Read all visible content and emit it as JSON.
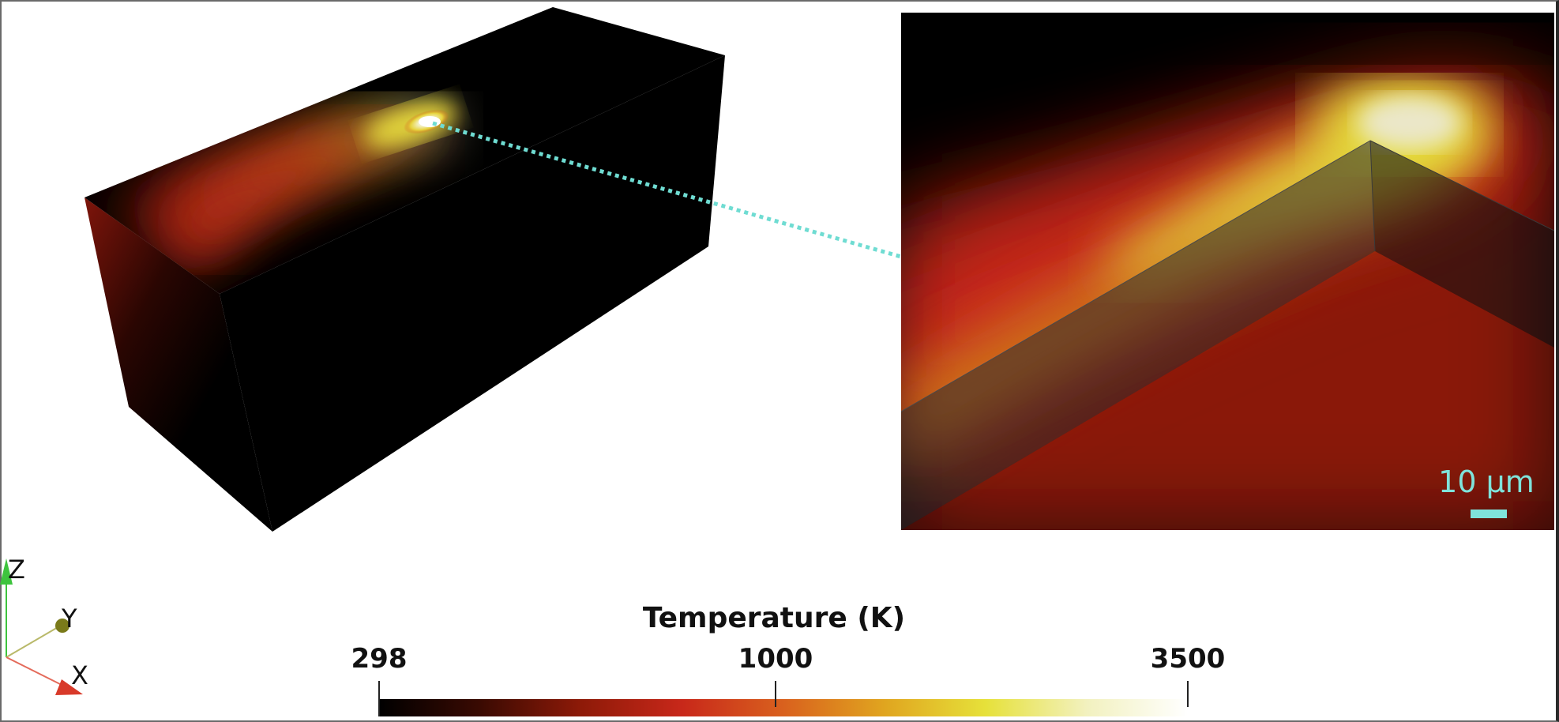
{
  "colorbar": {
    "title": "Temperature (K)",
    "ticks": [
      {
        "label": "298",
        "value": 298
      },
      {
        "label": "1000",
        "value": 1000
      },
      {
        "label": "3500",
        "value": 3500
      }
    ],
    "colors": [
      "#000000",
      "#3a0a02",
      "#8e1a08",
      "#c8281a",
      "#d9611e",
      "#e0a51f",
      "#e6e13a",
      "#f2f1bf",
      "#ffffff"
    ]
  },
  "inset": {
    "scale_bar_label": "10 µm"
  },
  "orientation_axes": {
    "z_label": "Z",
    "y_label": "Y",
    "x_label": "X",
    "z_color": "#3ec43e",
    "y_color": "#9a9a2a",
    "x_color": "#d83a2a"
  },
  "connector_color": "#6fdcd2"
}
